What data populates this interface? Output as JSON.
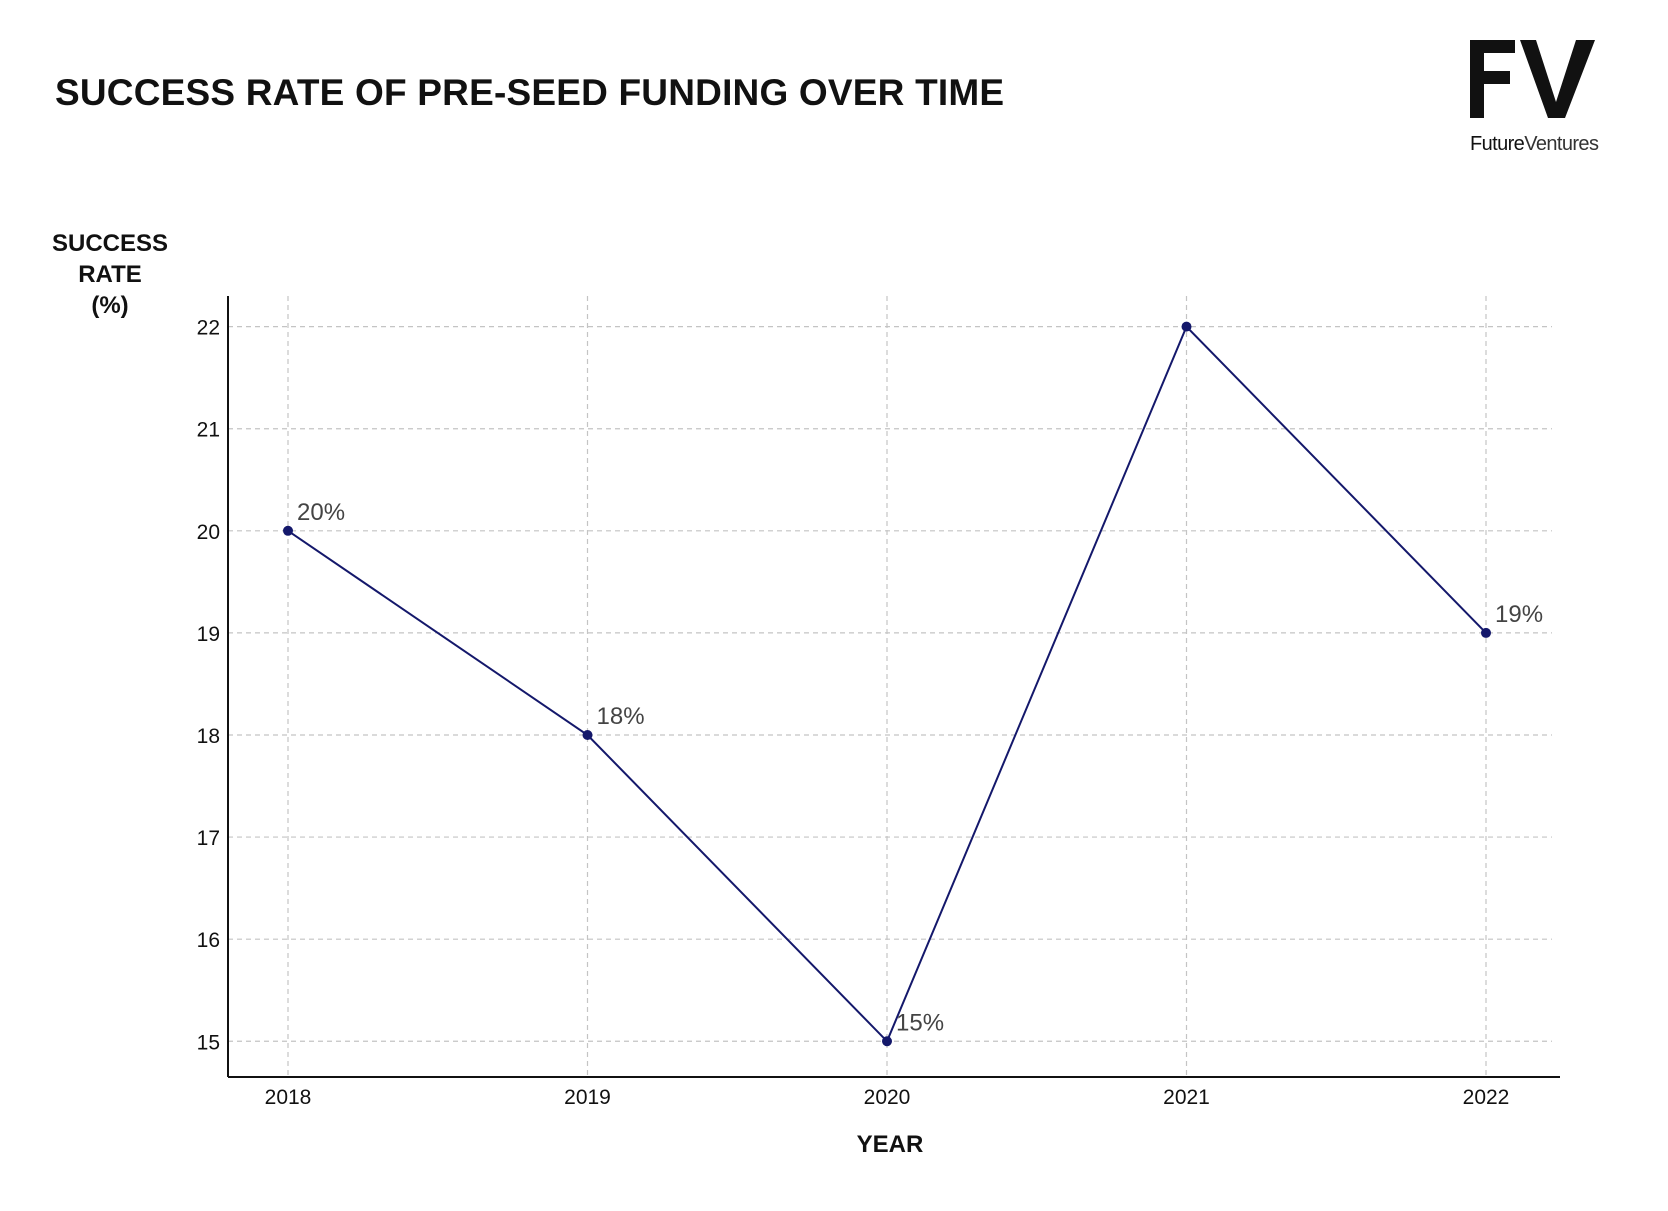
{
  "brand": {
    "logo_mark": "FV",
    "logo_word_1": "Future",
    "logo_word_2": "Ventures"
  },
  "chart_data": {
    "type": "line",
    "title": "SUCCESS RATE OF PRE-SEED FUNDING OVER TIME",
    "ylabel_lines": [
      "SUCCESS",
      "RATE",
      "(%)"
    ],
    "xlabel": "YEAR",
    "categories": [
      "2018",
      "2019",
      "2020",
      "2021",
      "2022"
    ],
    "series": [
      {
        "values": [
          20,
          18,
          15,
          22,
          19
        ],
        "color": "#14186b"
      }
    ],
    "data_labels": [
      "20%",
      "18%",
      "15%",
      null,
      "19%"
    ],
    "y_ticks": [
      15,
      16,
      17,
      18,
      19,
      20,
      21,
      22
    ],
    "ylim": [
      14.65,
      22.3
    ],
    "grid": true,
    "grid_style": "dashed",
    "legend": "none"
  }
}
